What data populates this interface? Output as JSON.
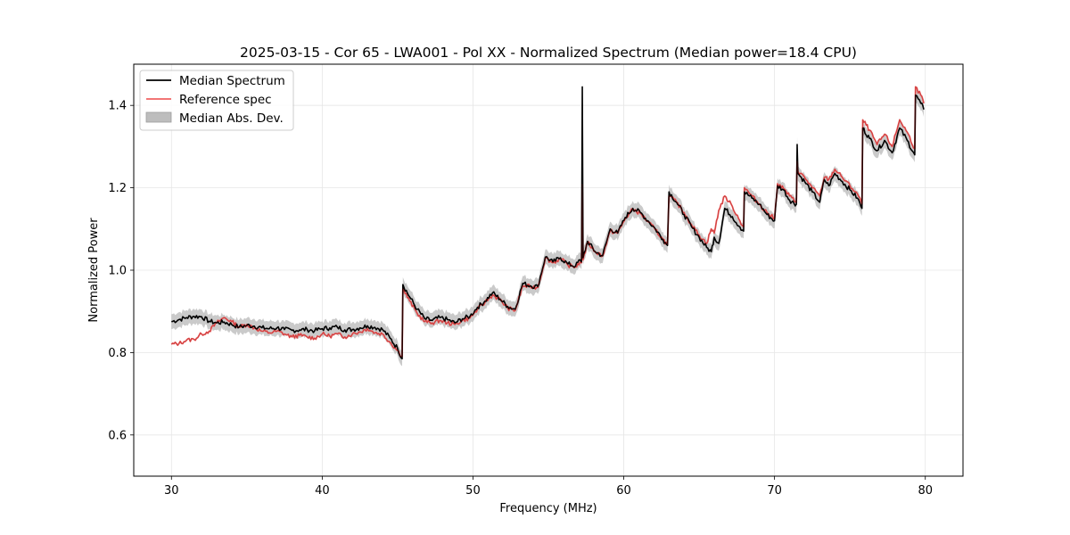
{
  "chart_data": {
    "type": "line",
    "title": "2025-03-15 - Cor 65 - LWA001 - Pol XX - Normalized Spectrum (Median power=18.4 CPU)",
    "xlabel": "Frequency (MHz)",
    "ylabel": "Normalized Power",
    "xlim": [
      27.5,
      82.5
    ],
    "ylim": [
      0.5,
      1.5
    ],
    "xticks": [
      30,
      40,
      50,
      60,
      70,
      80
    ],
    "xtick_labels": [
      "30",
      "40",
      "50",
      "60",
      "70",
      "80"
    ],
    "yticks": [
      0.6,
      0.8,
      1.0,
      1.2,
      1.4
    ],
    "ytick_labels": [
      "0.6",
      "0.8",
      "1.0",
      "1.2",
      "1.4"
    ],
    "grid": true,
    "legend_position": "upper-left",
    "legend": [
      "Median Spectrum",
      "Reference spec",
      "Median Abs. Dev."
    ],
    "colors": {
      "median": "#000000",
      "reference": "#f06262",
      "mad_band": "#bdbdbd",
      "grid": "#e6e6e6"
    },
    "series": [
      {
        "name": "Median Spectrum",
        "x": [
          30.0,
          30.5,
          31.0,
          31.5,
          32.0,
          32.5,
          33.0,
          33.5,
          34.0,
          34.5,
          35.0,
          35.5,
          36.0,
          36.5,
          37.0,
          37.5,
          38.0,
          38.5,
          39.0,
          39.5,
          40.0,
          40.5,
          41.0,
          41.5,
          42.0,
          42.5,
          43.0,
          43.5,
          44.0,
          44.5,
          45.0,
          45.3,
          45.35,
          45.8,
          46.3,
          46.8,
          47.3,
          47.8,
          48.3,
          48.8,
          49.3,
          49.8,
          50.3,
          50.8,
          51.3,
          51.8,
          52.3,
          52.8,
          53.3,
          53.8,
          54.3,
          54.8,
          55.3,
          55.8,
          56.3,
          56.8,
          57.1,
          57.2,
          57.25,
          57.3,
          57.6,
          58.1,
          58.6,
          59.1,
          59.6,
          60.1,
          60.6,
          61.1,
          61.6,
          62.1,
          62.6,
          62.9,
          63.0,
          63.5,
          64.0,
          64.5,
          65.0,
          65.5,
          65.8,
          66.0,
          66.3,
          66.7,
          67.2,
          67.7,
          67.95,
          68.0,
          68.5,
          69.0,
          69.5,
          70.0,
          70.2,
          70.6,
          71.0,
          71.45,
          71.5,
          71.55,
          72.0,
          72.5,
          73.0,
          73.3,
          73.6,
          74.0,
          74.5,
          75.0,
          75.5,
          75.8,
          75.85,
          76.3,
          76.8,
          77.3,
          77.8,
          78.3,
          78.8,
          79.3,
          79.35,
          79.7,
          79.9
        ],
        "values": [
          0.875,
          0.88,
          0.885,
          0.888,
          0.887,
          0.876,
          0.872,
          0.874,
          0.868,
          0.862,
          0.866,
          0.864,
          0.86,
          0.858,
          0.86,
          0.856,
          0.854,
          0.855,
          0.856,
          0.853,
          0.858,
          0.86,
          0.862,
          0.855,
          0.856,
          0.86,
          0.865,
          0.861,
          0.856,
          0.835,
          0.81,
          0.785,
          0.965,
          0.935,
          0.905,
          0.882,
          0.878,
          0.885,
          0.88,
          0.872,
          0.882,
          0.888,
          0.91,
          0.925,
          0.945,
          0.93,
          0.912,
          0.905,
          0.968,
          0.962,
          0.96,
          1.032,
          1.02,
          1.03,
          1.015,
          1.01,
          1.025,
          1.02,
          1.445,
          1.03,
          1.07,
          1.045,
          1.035,
          1.1,
          1.09,
          1.128,
          1.15,
          1.14,
          1.12,
          1.1,
          1.075,
          1.06,
          1.19,
          1.165,
          1.135,
          1.105,
          1.08,
          1.055,
          1.045,
          1.08,
          1.065,
          1.15,
          1.13,
          1.105,
          1.095,
          1.19,
          1.175,
          1.16,
          1.135,
          1.12,
          1.205,
          1.195,
          1.17,
          1.16,
          1.305,
          1.235,
          1.215,
          1.19,
          1.165,
          1.22,
          1.205,
          1.235,
          1.215,
          1.195,
          1.175,
          1.15,
          1.345,
          1.32,
          1.29,
          1.315,
          1.285,
          1.345,
          1.315,
          1.28,
          1.425,
          1.405,
          1.39
        ]
      },
      {
        "name": "Reference spec",
        "x": [
          30.0,
          30.5,
          31.0,
          31.5,
          32.0,
          32.5,
          33.0,
          33.5,
          34.0,
          34.5,
          35.0,
          35.5,
          36.0,
          36.5,
          37.0,
          37.5,
          38.0,
          38.5,
          39.0,
          39.5,
          40.0,
          40.5,
          41.0,
          41.5,
          42.0,
          42.5,
          43.0,
          43.5,
          44.0,
          44.5,
          45.0,
          45.3,
          45.35,
          45.8,
          46.3,
          46.8,
          47.3,
          47.8,
          48.3,
          48.8,
          49.3,
          49.8,
          50.3,
          50.8,
          51.3,
          51.8,
          52.3,
          52.8,
          53.3,
          53.8,
          54.3,
          54.8,
          55.3,
          55.8,
          56.3,
          56.8,
          57.1,
          57.2,
          57.25,
          57.3,
          57.6,
          58.1,
          58.6,
          59.1,
          59.6,
          60.1,
          60.6,
          61.1,
          61.6,
          62.1,
          62.6,
          62.9,
          63.0,
          63.5,
          64.0,
          64.5,
          65.0,
          65.5,
          65.8,
          66.0,
          66.3,
          66.7,
          67.2,
          67.7,
          67.95,
          68.0,
          68.5,
          69.0,
          69.5,
          70.0,
          70.2,
          70.6,
          71.0,
          71.45,
          71.5,
          71.55,
          72.0,
          72.5,
          73.0,
          73.3,
          73.6,
          74.0,
          74.5,
          75.0,
          75.5,
          75.8,
          75.85,
          76.3,
          76.8,
          77.3,
          77.8,
          78.3,
          78.8,
          79.3,
          79.35,
          79.7,
          79.9
        ],
        "values": [
          0.82,
          0.822,
          0.83,
          0.832,
          0.845,
          0.852,
          0.872,
          0.885,
          0.875,
          0.862,
          0.868,
          0.86,
          0.852,
          0.848,
          0.852,
          0.845,
          0.838,
          0.842,
          0.838,
          0.835,
          0.845,
          0.84,
          0.845,
          0.838,
          0.845,
          0.85,
          0.858,
          0.848,
          0.845,
          0.825,
          0.805,
          0.79,
          0.955,
          0.925,
          0.895,
          0.875,
          0.872,
          0.878,
          0.872,
          0.868,
          0.878,
          0.884,
          0.905,
          0.922,
          0.94,
          0.928,
          0.908,
          0.902,
          0.962,
          0.96,
          0.958,
          1.03,
          1.018,
          1.028,
          1.012,
          1.008,
          1.02,
          1.018,
          1.21,
          1.025,
          1.068,
          1.045,
          1.035,
          1.095,
          1.09,
          1.125,
          1.148,
          1.138,
          1.118,
          1.098,
          1.075,
          1.062,
          1.18,
          1.165,
          1.14,
          1.11,
          1.085,
          1.065,
          1.1,
          1.09,
          1.145,
          1.18,
          1.155,
          1.12,
          1.105,
          1.2,
          1.18,
          1.16,
          1.14,
          1.125,
          1.21,
          1.198,
          1.18,
          1.165,
          1.265,
          1.24,
          1.225,
          1.2,
          1.18,
          1.225,
          1.22,
          1.245,
          1.225,
          1.205,
          1.185,
          1.16,
          1.365,
          1.34,
          1.305,
          1.33,
          1.3,
          1.365,
          1.335,
          1.295,
          1.445,
          1.425,
          1.405
        ]
      }
    ],
    "mad_band_halfwidth": 0.018
  }
}
